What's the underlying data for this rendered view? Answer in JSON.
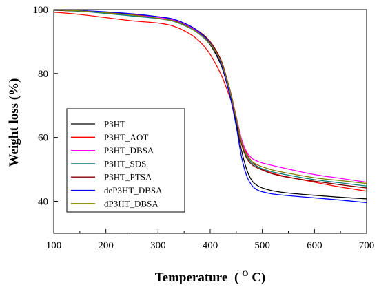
{
  "chart_data": {
    "type": "line",
    "xlabel": "Temperature",
    "xlabel_unit_prefix": "(",
    "xlabel_unit_sup": "O",
    "xlabel_unit_suffix": "C)",
    "ylabel": "Weight loss (%)",
    "xlim": [
      100,
      700
    ],
    "ylim": [
      30,
      100
    ],
    "x_ticks": [
      100,
      200,
      300,
      400,
      500,
      600,
      700
    ],
    "x_tick_labels": [
      "100",
      "200",
      "300",
      "400",
      "500",
      "600",
      "700"
    ],
    "y_ticks": [
      40,
      60,
      80,
      100
    ],
    "y_tick_labels": [
      "40",
      "60",
      "80",
      "100"
    ],
    "grid": false,
    "legend_position": "lower-left",
    "series": [
      {
        "name": "P3HT",
        "color": "#000000",
        "x": [
          100,
          150,
          200,
          250,
          300,
          330,
          360,
          380,
          400,
          420,
          430,
          440,
          450,
          460,
          470,
          480,
          490,
          500,
          520,
          550,
          600,
          650,
          700
        ],
        "y": [
          99.8,
          99.5,
          99.0,
          98.3,
          97.2,
          96.5,
          94.5,
          92.3,
          89.0,
          83.0,
          78.0,
          72.0,
          64.5,
          56.0,
          50.0,
          46.5,
          45.0,
          44.2,
          43.3,
          42.6,
          41.9,
          41.3,
          40.8
        ]
      },
      {
        "name": "P3HT_AOT",
        "color": "#ff0000",
        "x": [
          100,
          150,
          200,
          250,
          300,
          330,
          360,
          380,
          400,
          420,
          430,
          440,
          450,
          460,
          470,
          480,
          490,
          500,
          520,
          550,
          600,
          650,
          700
        ],
        "y": [
          99.2,
          98.5,
          97.5,
          96.5,
          95.8,
          94.8,
          92.5,
          90.0,
          86.0,
          80.0,
          76.0,
          71.5,
          66.0,
          59.5,
          55.0,
          52.5,
          51.0,
          50.0,
          48.8,
          47.6,
          46.0,
          44.5,
          43.2
        ]
      },
      {
        "name": "P3HT_DBSA",
        "color": "#ff00ff",
        "x": [
          100,
          150,
          200,
          250,
          300,
          330,
          360,
          380,
          400,
          420,
          430,
          440,
          450,
          460,
          470,
          480,
          490,
          500,
          520,
          550,
          600,
          650,
          700
        ],
        "y": [
          99.9,
          99.6,
          99.0,
          98.4,
          97.6,
          96.8,
          94.8,
          92.6,
          89.5,
          84.0,
          79.0,
          73.5,
          66.5,
          59.5,
          55.5,
          53.5,
          52.6,
          52.0,
          51.2,
          50.1,
          48.4,
          47.2,
          46.0
        ]
      },
      {
        "name": "P3HT_SDS",
        "color": "#008080",
        "x": [
          100,
          150,
          200,
          250,
          300,
          330,
          360,
          380,
          400,
          420,
          430,
          440,
          450,
          460,
          470,
          480,
          490,
          500,
          520,
          550,
          600,
          650,
          700
        ],
        "y": [
          99.9,
          99.5,
          98.8,
          98.0,
          97.2,
          96.3,
          94.3,
          92.2,
          89.2,
          83.8,
          78.8,
          73.0,
          66.0,
          58.5,
          54.0,
          52.0,
          50.9,
          50.2,
          49.2,
          48.2,
          46.8,
          45.8,
          44.8
        ]
      },
      {
        "name": "P3HT_PTSA",
        "color": "#800000",
        "x": [
          100,
          150,
          200,
          250,
          300,
          330,
          360,
          380,
          400,
          420,
          430,
          440,
          450,
          460,
          470,
          480,
          490,
          500,
          520,
          550,
          600,
          650,
          700
        ],
        "y": [
          99.9,
          99.7,
          99.2,
          98.6,
          97.8,
          97.0,
          95.0,
          93.0,
          90.0,
          84.5,
          79.5,
          73.5,
          66.0,
          58.0,
          53.5,
          51.5,
          50.5,
          49.8,
          48.6,
          47.5,
          46.3,
          45.2,
          44.2
        ]
      },
      {
        "name": "deP3HT_DBSA",
        "color": "#0000ff",
        "x": [
          100,
          150,
          200,
          250,
          300,
          330,
          360,
          380,
          400,
          420,
          430,
          440,
          450,
          460,
          470,
          480,
          490,
          500,
          520,
          550,
          600,
          650,
          700
        ],
        "y": [
          99.9,
          99.7,
          99.3,
          98.7,
          97.8,
          97.0,
          95.0,
          92.8,
          89.5,
          83.5,
          78.0,
          71.5,
          63.5,
          54.0,
          48.0,
          45.0,
          43.6,
          43.0,
          42.3,
          41.8,
          41.1,
          40.4,
          39.6
        ]
      },
      {
        "name": "dP3HT_DBSA",
        "color": "#808000",
        "x": [
          100,
          150,
          200,
          250,
          300,
          330,
          360,
          380,
          400,
          420,
          430,
          440,
          450,
          460,
          470,
          480,
          490,
          500,
          520,
          550,
          600,
          650,
          700
        ],
        "y": [
          99.9,
          99.6,
          99.0,
          98.3,
          97.3,
          96.4,
          94.4,
          92.3,
          89.3,
          84.0,
          79.0,
          73.2,
          66.2,
          58.8,
          54.5,
          52.5,
          51.5,
          50.8,
          49.8,
          48.8,
          47.4,
          46.5,
          45.6
        ]
      }
    ]
  }
}
